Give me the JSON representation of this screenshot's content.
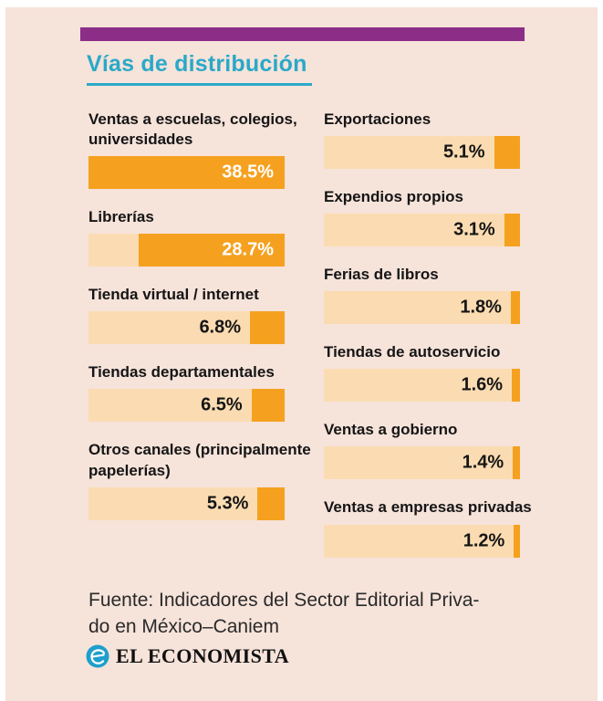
{
  "title": "Vías de distribución",
  "chart_data": {
    "type": "bar",
    "orientation": "horizontal",
    "unit": "%",
    "max_value": 38.5,
    "title": "Vías de distribución",
    "legend": "none",
    "columns": [
      {
        "items": [
          {
            "label": "Ventas a escuelas, colegios, universidades",
            "value": 38.5,
            "display": "38.5%"
          },
          {
            "label": "Librerías",
            "value": 28.7,
            "display": "28.7%"
          },
          {
            "label": "Tienda virtual / internet",
            "value": 6.8,
            "display": "6.8%"
          },
          {
            "label": "Tiendas departamentales",
            "value": 6.5,
            "display": "6.5%"
          },
          {
            "label": "Otros canales (principalmente papelerías)",
            "value": 5.3,
            "display": "5.3%"
          }
        ]
      },
      {
        "items": [
          {
            "label": "Exportaciones",
            "value": 5.1,
            "display": "5.1%"
          },
          {
            "label": "Expendios propios",
            "value": 3.1,
            "display": "3.1%"
          },
          {
            "label": "Ferias de libros",
            "value": 1.8,
            "display": "1.8%"
          },
          {
            "label": "Tiendas de autoservicio",
            "value": 1.6,
            "display": "1.6%"
          },
          {
            "label": "Ventas a gobierno",
            "value": 1.4,
            "display": "1.4%"
          },
          {
            "label": "Ventas a empresas privadas",
            "value": 1.2,
            "display": "1.2%"
          }
        ]
      }
    ]
  },
  "footer": {
    "source_line1": "Fuente: Indicadores del Sector Editorial Priva-",
    "source_line2": "do en México–Caniem",
    "brand": "EL ECONOMISTA"
  },
  "icons": {
    "brand_logo": "el-economista-globe-icon"
  },
  "colors": {
    "background": "#F6E3DA",
    "accent_purple": "#8C2E87",
    "title_cyan": "#2AA9C8",
    "bar_orange": "#F5A11F",
    "bar_track": "#FBDCB2",
    "text_dark": "#151515",
    "brand_blue": "#1E9FCC"
  }
}
